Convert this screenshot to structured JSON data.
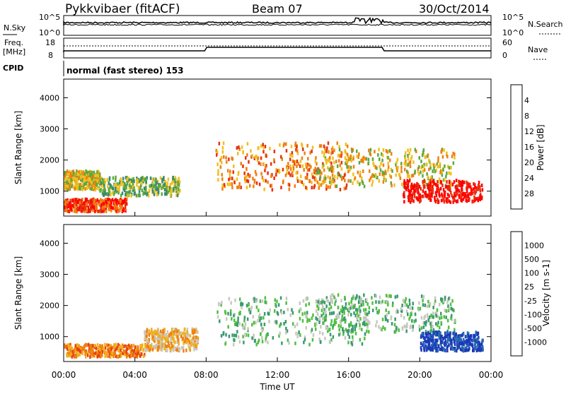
{
  "header": {
    "station": "Pykkvibaer (fitACF)",
    "beam": "Beam 07",
    "date": "30/Oct/2014"
  },
  "top_panels": {
    "nsky_label": "N.Sky",
    "nsky_top": "10^5",
    "nsky_bottom": "10^0",
    "nsearch_label": "N.Search",
    "nsearch_top": "10^5",
    "nsearch_bottom": "10^0",
    "freq_label": "Freq.",
    "freq_unit": "[MHz]",
    "freq_top": "18",
    "freq_bottom": "8",
    "nave_label": "Nave",
    "nave_top": "60",
    "nave_bottom": "0",
    "cpid_label": "CPID",
    "cpid_text": "normal (fast stereo) 153"
  },
  "x_axis": {
    "label": "Time UT",
    "ticks": [
      "00:00",
      "04:00",
      "08:00",
      "12:00",
      "16:00",
      "20:00",
      "00:00"
    ]
  },
  "chart_data": [
    {
      "type": "heatmap",
      "name": "power",
      "ylabel": "Slant Range [km]",
      "yticks": [
        "1000",
        "2000",
        "3000",
        "4000"
      ],
      "ylim": [
        200,
        4600
      ],
      "xlim_hours": [
        0,
        24
      ],
      "colorbar_label": "Power [dB]",
      "colorbar_ticks": [
        "4",
        "8",
        "12",
        "16",
        "20",
        "24",
        "28"
      ],
      "colorbar_colors": [
        "#1a2aff",
        "#2a55b8",
        "#3a8a70",
        "#5aaa40",
        "#f0c020",
        "#f08010",
        "#e83010",
        "#ff0000"
      ],
      "bands": [
        {
          "t": [
            0,
            3.5
          ],
          "r": [
            400,
            800
          ],
          "level": 6
        },
        {
          "t": [
            0,
            2
          ],
          "r": [
            1100,
            1700
          ],
          "level": 4
        },
        {
          "t": [
            2,
            6.5
          ],
          "r": [
            900,
            1500
          ],
          "level": 3
        },
        {
          "t": [
            8.5,
            16
          ],
          "r": [
            1100,
            2600
          ],
          "level": 5
        },
        {
          "t": [
            14,
            22
          ],
          "r": [
            1200,
            2400
          ],
          "level": 4
        },
        {
          "t": [
            19,
            23.5
          ],
          "r": [
            700,
            1400
          ],
          "level": 7
        }
      ]
    },
    {
      "type": "heatmap",
      "name": "velocity",
      "ylabel": "Slant Range [km]",
      "yticks": [
        "1000",
        "2000",
        "3000",
        "4000"
      ],
      "ylim": [
        200,
        4600
      ],
      "xlim_hours": [
        0,
        24
      ],
      "colorbar_label": "Velocity [m s-1]",
      "colorbar_ticks": [
        "1000",
        "500",
        "100",
        "25",
        "-25",
        "-100",
        "-500",
        "-1000"
      ],
      "colorbar_colors": [
        "#1a3ab8",
        "#2a6ab0",
        "#3a9a70",
        "#50c040",
        "#c8c8c0",
        "#f0b020",
        "#f08010",
        "#e84010",
        "#ff0000"
      ],
      "bands": [
        {
          "t": [
            0,
            4.5
          ],
          "r": [
            400,
            800
          ],
          "level": "-500"
        },
        {
          "t": [
            4.5,
            7.5
          ],
          "r": [
            600,
            1300
          ],
          "level": "-100"
        },
        {
          "t": [
            8.5,
            17
          ],
          "r": [
            800,
            2300
          ],
          "level": "25"
        },
        {
          "t": [
            14,
            22
          ],
          "r": [
            1200,
            2400
          ],
          "level": "25"
        },
        {
          "t": [
            20,
            23.5
          ],
          "r": [
            600,
            1200
          ],
          "level": "1000"
        }
      ]
    }
  ]
}
